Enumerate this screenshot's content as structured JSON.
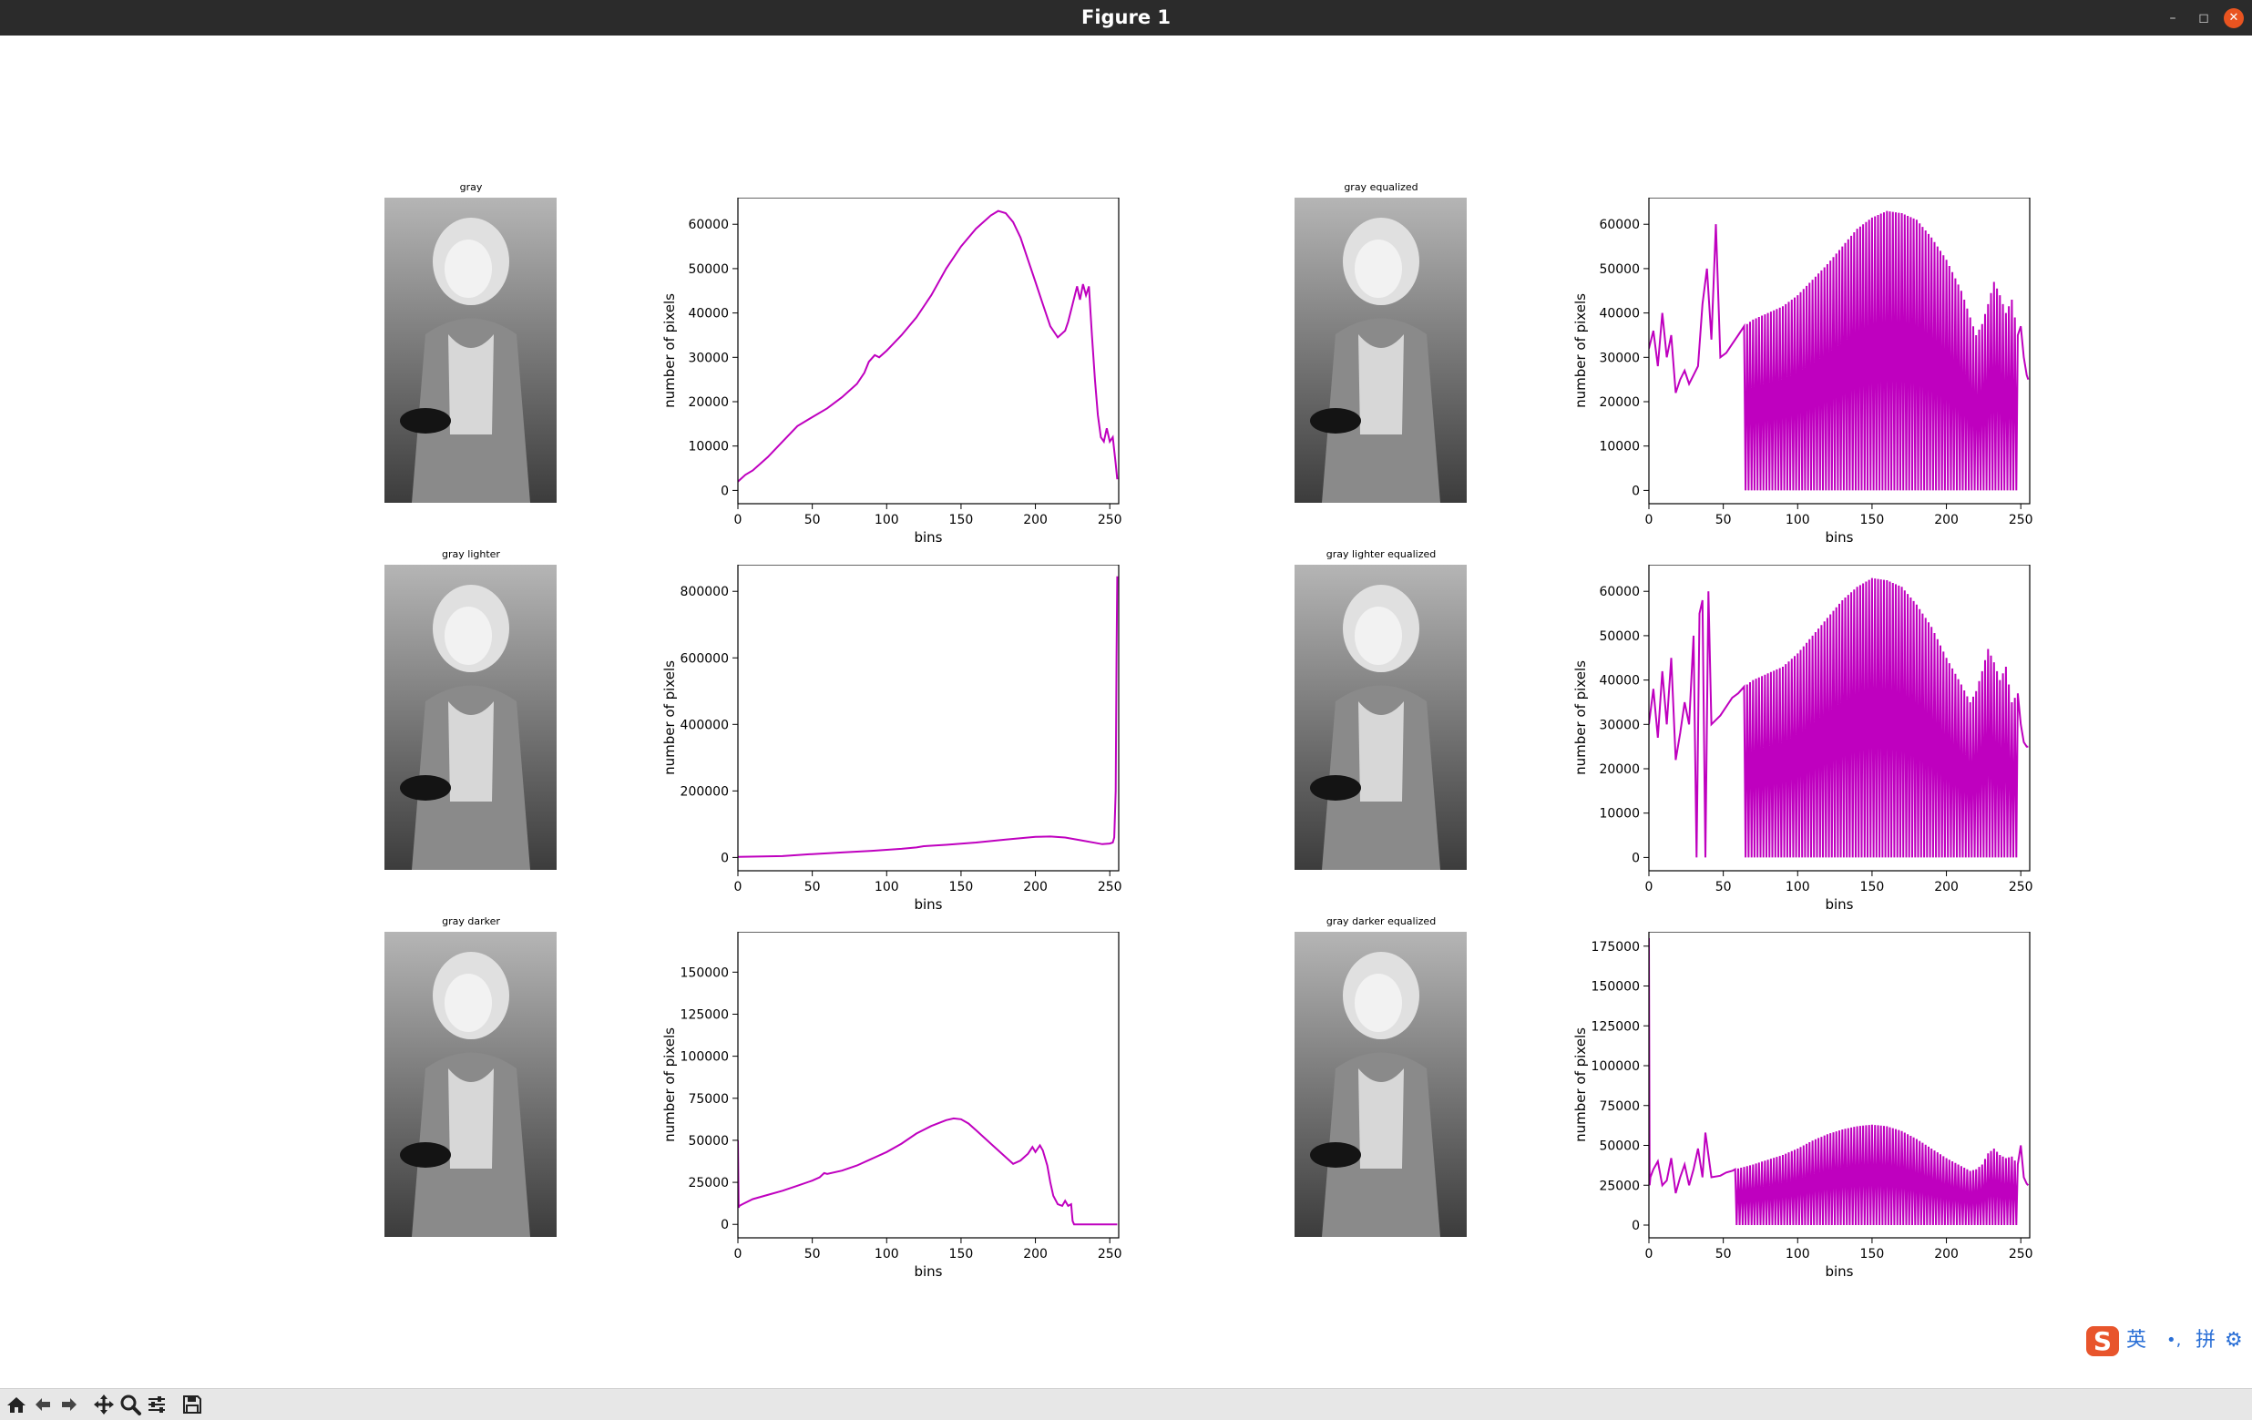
{
  "window": {
    "title": "Figure 1",
    "minimize_glyph": "–",
    "maximize_glyph": "◻",
    "close_glyph": "✕"
  },
  "panels": [
    {
      "image_title": "gray",
      "chart_index": 0
    },
    {
      "image_title": "gray equalized",
      "chart_index": 1
    },
    {
      "image_title": "gray lighter",
      "chart_index": 2
    },
    {
      "image_title": "gray lighter equalized",
      "chart_index": 3
    },
    {
      "image_title": "gray darker",
      "chart_index": 4
    },
    {
      "image_title": "gray darker equalized",
      "chart_index": 5
    }
  ],
  "chart_data": [
    {
      "type": "line",
      "title": "",
      "xlabel": "bins",
      "ylabel": "number of pixels",
      "color": "#bf00bf",
      "xlim": [
        0,
        256
      ],
      "ylim": [
        -3000,
        66000
      ],
      "xticks": [
        0,
        50,
        100,
        150,
        200,
        250
      ],
      "yticks": [
        0,
        10000,
        20000,
        30000,
        40000,
        50000,
        60000
      ],
      "series": [
        {
          "style": "smooth",
          "x": [
            0,
            5,
            10,
            20,
            30,
            40,
            50,
            60,
            70,
            80,
            85,
            88,
            92,
            95,
            100,
            110,
            120,
            130,
            140,
            150,
            160,
            170,
            175,
            180,
            185,
            190,
            195,
            200,
            205,
            210,
            215,
            220,
            222,
            225,
            228,
            230,
            232,
            234,
            236,
            238,
            240,
            242,
            244,
            246,
            248,
            250,
            252,
            254,
            255
          ],
          "y": [
            2000,
            3500,
            4500,
            7500,
            11000,
            14500,
            16500,
            18500,
            21000,
            24000,
            26500,
            29000,
            30500,
            30000,
            31500,
            35000,
            39000,
            44000,
            50000,
            55000,
            59000,
            62000,
            63000,
            62500,
            60500,
            57000,
            52000,
            47000,
            42000,
            37000,
            34500,
            36000,
            38000,
            42000,
            46000,
            43000,
            46500,
            44000,
            46000,
            35000,
            25000,
            17000,
            12000,
            11000,
            14000,
            11000,
            12000,
            6000,
            2500
          ]
        }
      ]
    },
    {
      "type": "line",
      "title": "",
      "xlabel": "bins",
      "ylabel": "number of pixels",
      "color": "#bf00bf",
      "xlim": [
        0,
        256
      ],
      "ylim": [
        -3000,
        66000
      ],
      "xticks": [
        0,
        50,
        100,
        150,
        200,
        250
      ],
      "yticks": [
        0,
        10000,
        20000,
        30000,
        40000,
        50000,
        60000
      ],
      "series": [
        {
          "style": "equalized",
          "spike_start": 64,
          "spike_end": 246,
          "spike_step": 2,
          "x": [
            0,
            3,
            6,
            9,
            12,
            15,
            18,
            21,
            24,
            27,
            30,
            33,
            36,
            39,
            42,
            45,
            48,
            52,
            56,
            60,
            64,
            70,
            80,
            90,
            100,
            110,
            120,
            130,
            140,
            150,
            160,
            170,
            180,
            190,
            200,
            210,
            216,
            220,
            224,
            228,
            232,
            236,
            240,
            244,
            248,
            250,
            252,
            254,
            255
          ],
          "y": [
            32000,
            36000,
            28000,
            40000,
            30000,
            35000,
            22000,
            25000,
            27000,
            24000,
            26000,
            28000,
            42000,
            50000,
            34000,
            60000,
            30000,
            31000,
            33000,
            35000,
            37000,
            38500,
            40000,
            41500,
            44000,
            47500,
            51000,
            55000,
            59000,
            61500,
            63000,
            62500,
            61000,
            57000,
            52000,
            45000,
            39000,
            35000,
            37500,
            42000,
            47000,
            44000,
            40000,
            43000,
            35000,
            37000,
            30000,
            26000,
            25000
          ]
        }
      ]
    },
    {
      "type": "line",
      "title": "",
      "xlabel": "bins",
      "ylabel": "number of pixels",
      "color": "#bf00bf",
      "xlim": [
        0,
        256
      ],
      "ylim": [
        -40000,
        880000
      ],
      "xticks": [
        0,
        50,
        100,
        150,
        200,
        250
      ],
      "yticks": [
        0,
        200000,
        400000,
        600000,
        800000
      ],
      "series": [
        {
          "style": "smooth",
          "x": [
            0,
            30,
            50,
            70,
            90,
            110,
            120,
            125,
            140,
            160,
            180,
            200,
            210,
            220,
            230,
            240,
            245,
            250,
            252,
            253,
            254,
            254.5,
            255
          ],
          "y": [
            2000,
            4000,
            10000,
            15000,
            20000,
            26000,
            30000,
            34000,
            38000,
            45000,
            54000,
            62000,
            63000,
            60000,
            52000,
            44000,
            40000,
            42000,
            45000,
            60000,
            200000,
            600000,
            845000
          ]
        }
      ]
    },
    {
      "type": "line",
      "title": "",
      "xlabel": "bins",
      "ylabel": "number of pixels",
      "color": "#bf00bf",
      "xlim": [
        0,
        256
      ],
      "ylim": [
        -3000,
        66000
      ],
      "xticks": [
        0,
        50,
        100,
        150,
        200,
        250
      ],
      "yticks": [
        0,
        10000,
        20000,
        30000,
        40000,
        50000,
        60000
      ],
      "series": [
        {
          "style": "equalized",
          "spike_start": 64,
          "spike_end": 246,
          "spike_step": 2,
          "x": [
            0,
            3,
            6,
            9,
            12,
            15,
            18,
            21,
            24,
            27,
            30,
            32,
            34,
            36,
            38,
            40,
            42,
            45,
            48,
            52,
            56,
            60,
            64,
            70,
            80,
            90,
            100,
            110,
            120,
            130,
            140,
            150,
            160,
            170,
            180,
            190,
            200,
            210,
            216,
            220,
            224,
            228,
            232,
            236,
            240,
            244,
            248,
            250,
            252,
            254,
            255
          ],
          "y": [
            30000,
            38000,
            27000,
            42000,
            30000,
            45000,
            22000,
            28000,
            35000,
            30000,
            50000,
            0,
            55000,
            58000,
            0,
            60000,
            30000,
            31000,
            32000,
            34000,
            36000,
            37000,
            38500,
            40000,
            41500,
            43000,
            46000,
            50000,
            54000,
            58000,
            61000,
            63000,
            62500,
            61000,
            57000,
            52000,
            45000,
            39000,
            35000,
            37500,
            42000,
            47000,
            44000,
            40000,
            43000,
            35000,
            37000,
            30000,
            26000,
            25000,
            25000
          ]
        }
      ]
    },
    {
      "type": "line",
      "title": "",
      "xlabel": "bins",
      "ylabel": "number of pixels",
      "color": "#bf00bf",
      "xlim": [
        0,
        256
      ],
      "ylim": [
        -8000,
        174000
      ],
      "xticks": [
        0,
        50,
        100,
        150,
        200,
        250
      ],
      "yticks": [
        0,
        25000,
        50000,
        75000,
        100000,
        125000,
        150000
      ],
      "series": [
        {
          "style": "smooth",
          "x": [
            0,
            0.5,
            1,
            3,
            10,
            20,
            30,
            40,
            50,
            55,
            58,
            60,
            70,
            80,
            90,
            100,
            110,
            120,
            130,
            140,
            145,
            150,
            155,
            160,
            170,
            180,
            185,
            190,
            195,
            198,
            200,
            203,
            205,
            208,
            210,
            212,
            215,
            218,
            220,
            222,
            224,
            225,
            226,
            230,
            240,
            250,
            255
          ],
          "y": [
            50000,
            10000,
            11000,
            12000,
            15000,
            17500,
            20000,
            23000,
            26000,
            28000,
            30500,
            30000,
            32000,
            35000,
            39000,
            43000,
            48000,
            54000,
            58500,
            62000,
            63000,
            62500,
            60000,
            56000,
            48000,
            40000,
            36000,
            38000,
            42000,
            46000,
            43000,
            47000,
            44000,
            35000,
            25000,
            17000,
            12000,
            11000,
            14000,
            11000,
            12000,
            2000,
            0,
            0,
            0,
            0,
            0
          ]
        }
      ]
    },
    {
      "type": "line",
      "title": "",
      "xlabel": "bins",
      "ylabel": "number of pixels",
      "color": "#bf00bf",
      "xlim": [
        0,
        256
      ],
      "ylim": [
        -8000,
        184000
      ],
      "xticks": [
        0,
        50,
        100,
        150,
        200,
        250
      ],
      "yticks": [
        0,
        25000,
        50000,
        75000,
        100000,
        125000,
        150000,
        175000
      ],
      "series": [
        {
          "style": "equalized",
          "spike_start": 58,
          "spike_end": 246,
          "spike_step": 2,
          "x": [
            0,
            0.5,
            1,
            3,
            6,
            9,
            12,
            15,
            18,
            21,
            24,
            27,
            30,
            33,
            36,
            38,
            42,
            48,
            52,
            56,
            58,
            70,
            80,
            90,
            100,
            110,
            120,
            130,
            140,
            150,
            160,
            170,
            180,
            190,
            200,
            210,
            216,
            220,
            224,
            228,
            232,
            236,
            240,
            244,
            248,
            250,
            252,
            254,
            255
          ],
          "y": [
            180000,
            25000,
            30000,
            35000,
            40000,
            25000,
            28000,
            42000,
            20000,
            30000,
            38000,
            25000,
            35000,
            48000,
            30000,
            58000,
            30000,
            31000,
            33000,
            34000,
            35000,
            38000,
            41000,
            44000,
            48000,
            53000,
            57000,
            60000,
            62000,
            63000,
            62000,
            59000,
            54000,
            48000,
            42000,
            37000,
            34000,
            35000,
            38000,
            45000,
            48000,
            44000,
            42000,
            43000,
            38000,
            50000,
            30000,
            26000,
            25000
          ]
        }
      ]
    }
  ],
  "ime": {
    "logo": "S",
    "mode": "英",
    "punct": "•,",
    "pinyin": "拼",
    "gear": "⚙"
  },
  "toolbar": {
    "home": "home",
    "back": "back",
    "forward": "forward",
    "pan": "pan",
    "zoom": "zoom",
    "configure": "configure subplots",
    "save": "save"
  }
}
